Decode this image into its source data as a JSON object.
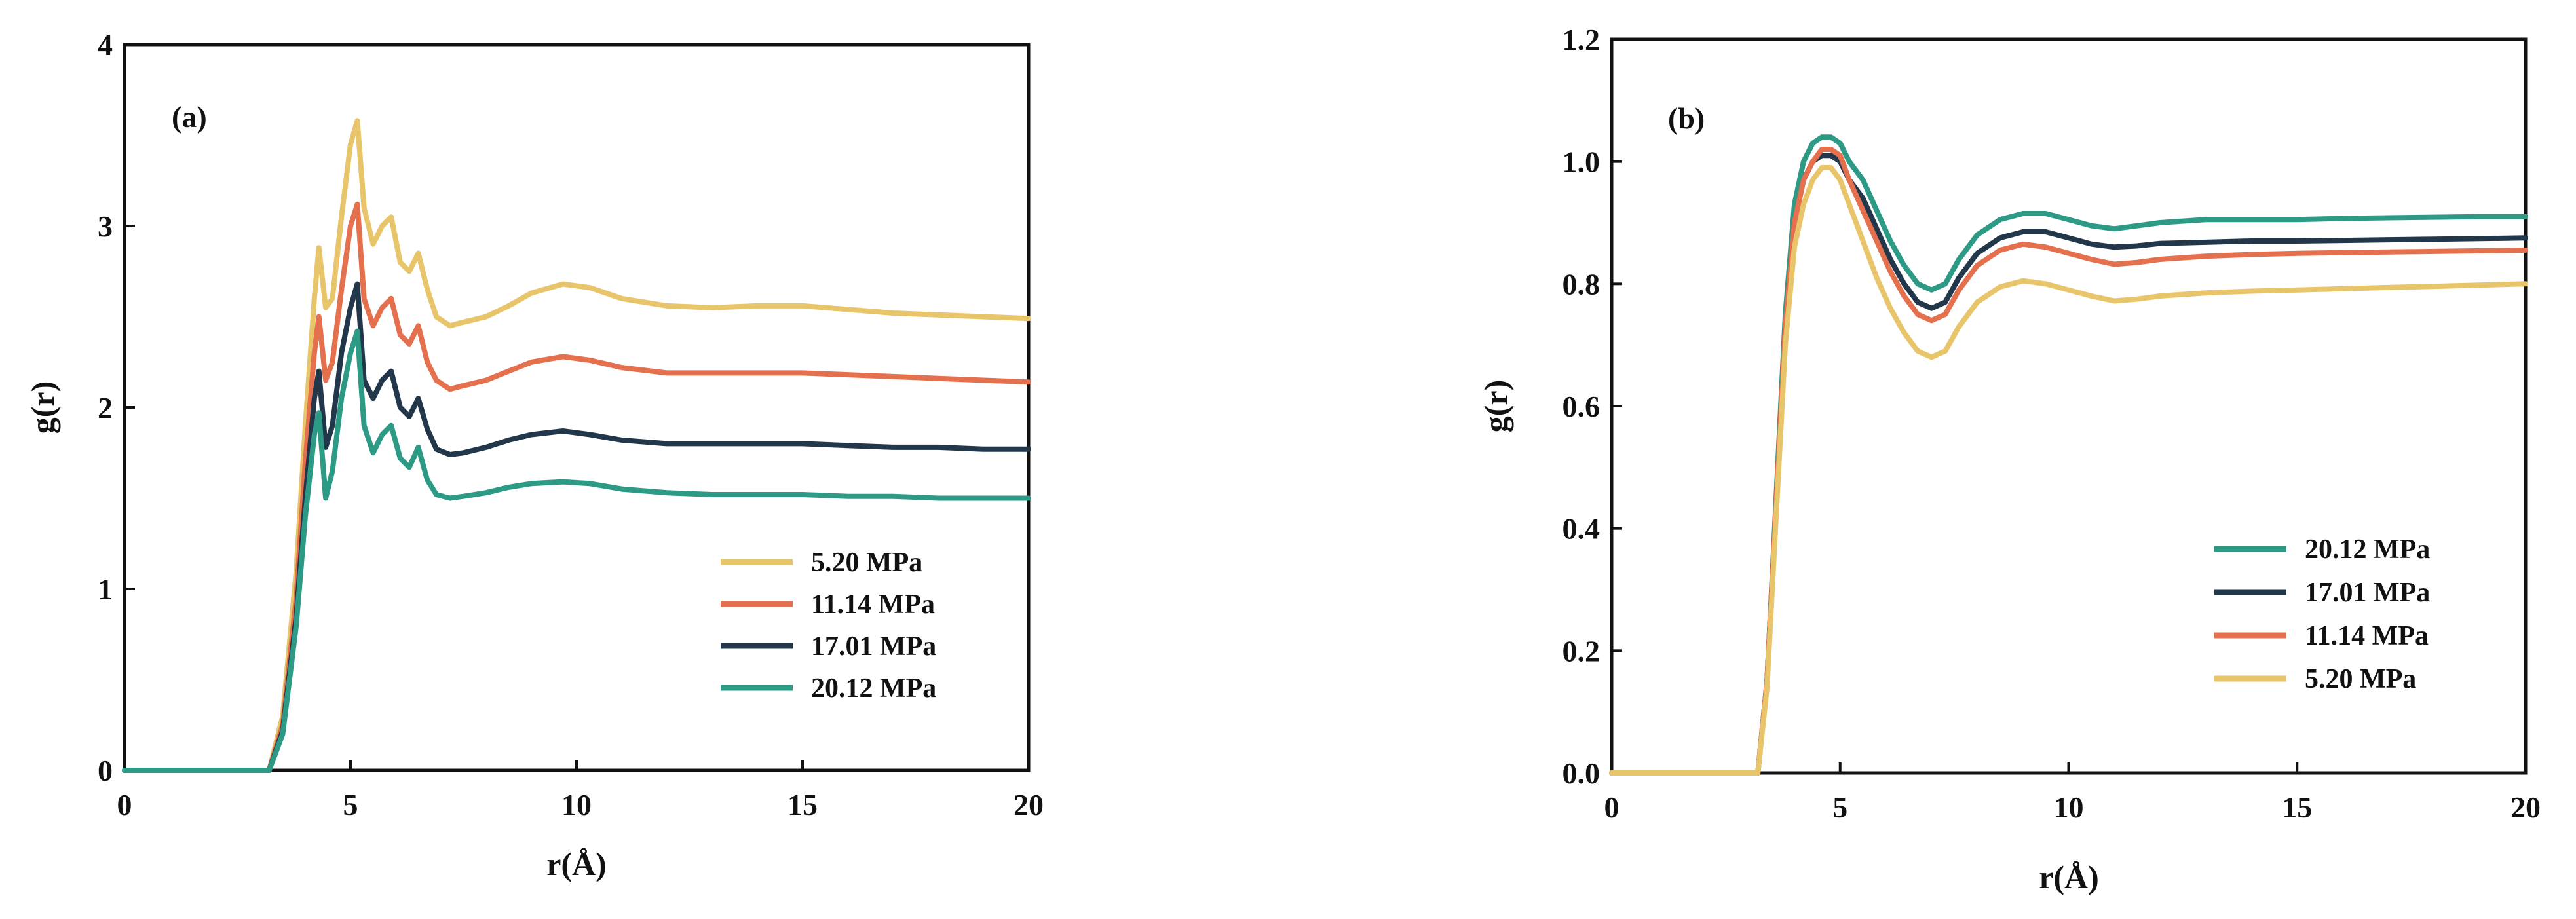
{
  "chart_data": [
    {
      "type": "line",
      "panel_label": "(a)",
      "xlabel": "r(Å)",
      "ylabel": "g(r)",
      "xlim": [
        0,
        20
      ],
      "ylim": [
        0,
        4
      ],
      "xticks": [
        0,
        5,
        10,
        15,
        20
      ],
      "yticks": [
        0,
        1,
        2,
        3,
        4
      ],
      "ytick_labels": [
        "0",
        "1",
        "2",
        "3",
        "4"
      ],
      "legend_position": "bottom-right",
      "series": [
        {
          "name": "5.20 MPa",
          "color": "#e8c46a",
          "x": [
            0,
            3.2,
            3.5,
            3.8,
            4.0,
            4.2,
            4.3,
            4.45,
            4.6,
            4.8,
            5.0,
            5.15,
            5.3,
            5.5,
            5.7,
            5.9,
            6.1,
            6.3,
            6.5,
            6.7,
            6.9,
            7.2,
            7.5,
            8.0,
            8.5,
            9.0,
            9.7,
            10.3,
            11.0,
            12.0,
            13.0,
            14.0,
            15.0,
            16.0,
            17.0,
            18.0,
            19.0,
            20.0
          ],
          "y": [
            0,
            0,
            0.3,
            1.1,
            1.9,
            2.6,
            2.88,
            2.55,
            2.6,
            3.05,
            3.45,
            3.58,
            3.1,
            2.9,
            3.0,
            3.05,
            2.8,
            2.75,
            2.85,
            2.65,
            2.5,
            2.45,
            2.47,
            2.5,
            2.56,
            2.63,
            2.68,
            2.66,
            2.6,
            2.56,
            2.55,
            2.56,
            2.56,
            2.54,
            2.52,
            2.51,
            2.5,
            2.49
          ]
        },
        {
          "name": "11.14 MPa",
          "color": "#e4704e",
          "x": [
            0,
            3.2,
            3.5,
            3.8,
            4.0,
            4.2,
            4.3,
            4.45,
            4.6,
            4.8,
            5.0,
            5.15,
            5.3,
            5.5,
            5.7,
            5.9,
            6.1,
            6.3,
            6.5,
            6.7,
            6.9,
            7.2,
            7.5,
            8.0,
            8.5,
            9.0,
            9.7,
            10.3,
            11.0,
            12.0,
            13.0,
            14.0,
            15.0,
            16.0,
            17.0,
            18.0,
            19.0,
            20.0
          ],
          "y": [
            0,
            0,
            0.25,
            0.95,
            1.7,
            2.3,
            2.5,
            2.15,
            2.25,
            2.65,
            3.0,
            3.12,
            2.6,
            2.45,
            2.55,
            2.6,
            2.4,
            2.35,
            2.45,
            2.25,
            2.15,
            2.1,
            2.12,
            2.15,
            2.2,
            2.25,
            2.28,
            2.26,
            2.22,
            2.19,
            2.19,
            2.19,
            2.19,
            2.18,
            2.17,
            2.16,
            2.15,
            2.14
          ]
        },
        {
          "name": "17.01 MPa",
          "color": "#22384a",
          "x": [
            0,
            3.2,
            3.5,
            3.8,
            4.0,
            4.2,
            4.3,
            4.45,
            4.6,
            4.8,
            5.0,
            5.15,
            5.3,
            5.5,
            5.7,
            5.9,
            6.1,
            6.3,
            6.5,
            6.7,
            6.9,
            7.2,
            7.5,
            8.0,
            8.5,
            9.0,
            9.7,
            10.3,
            11.0,
            12.0,
            13.0,
            14.0,
            15.0,
            16.0,
            17.0,
            18.0,
            19.0,
            20.0
          ],
          "y": [
            0,
            0,
            0.22,
            0.85,
            1.5,
            2.05,
            2.2,
            1.78,
            1.9,
            2.3,
            2.55,
            2.68,
            2.15,
            2.05,
            2.15,
            2.2,
            2.0,
            1.95,
            2.05,
            1.88,
            1.77,
            1.74,
            1.75,
            1.78,
            1.82,
            1.85,
            1.87,
            1.85,
            1.82,
            1.8,
            1.8,
            1.8,
            1.8,
            1.79,
            1.78,
            1.78,
            1.77,
            1.77
          ]
        },
        {
          "name": "20.12 MPa",
          "color": "#2d9a86",
          "x": [
            0,
            3.2,
            3.5,
            3.8,
            4.0,
            4.2,
            4.3,
            4.45,
            4.6,
            4.8,
            5.0,
            5.15,
            5.3,
            5.5,
            5.7,
            5.9,
            6.1,
            6.3,
            6.5,
            6.7,
            6.9,
            7.2,
            7.5,
            8.0,
            8.5,
            9.0,
            9.7,
            10.3,
            11.0,
            12.0,
            13.0,
            14.0,
            15.0,
            16.0,
            17.0,
            18.0,
            19.0,
            20.0
          ],
          "y": [
            0,
            0,
            0.2,
            0.8,
            1.4,
            1.85,
            1.97,
            1.5,
            1.65,
            2.05,
            2.3,
            2.42,
            1.9,
            1.75,
            1.85,
            1.9,
            1.72,
            1.67,
            1.78,
            1.6,
            1.52,
            1.5,
            1.51,
            1.53,
            1.56,
            1.58,
            1.59,
            1.58,
            1.55,
            1.53,
            1.52,
            1.52,
            1.52,
            1.51,
            1.51,
            1.5,
            1.5,
            1.5
          ]
        }
      ]
    },
    {
      "type": "line",
      "panel_label": "(b)",
      "xlabel": "r(Å)",
      "ylabel": "g(r)",
      "xlim": [
        0,
        20
      ],
      "ylim": [
        0,
        1.2
      ],
      "xticks": [
        0,
        5,
        10,
        15,
        20
      ],
      "yticks": [
        0,
        0.2,
        0.4,
        0.6,
        0.8,
        1.0,
        1.2
      ],
      "ytick_labels": [
        "0.0",
        "0.2",
        "0.4",
        "0.6",
        "0.8",
        "1.0",
        "1.2"
      ],
      "legend_position": "bottom-right",
      "series": [
        {
          "name": "20.12 MPa",
          "color": "#2d9a86",
          "x": [
            0,
            3.2,
            3.4,
            3.6,
            3.8,
            4.0,
            4.2,
            4.4,
            4.6,
            4.8,
            5.0,
            5.2,
            5.5,
            5.8,
            6.1,
            6.4,
            6.7,
            7.0,
            7.3,
            7.6,
            8.0,
            8.5,
            9.0,
            9.5,
            10.0,
            10.5,
            11.0,
            11.5,
            12.0,
            13.0,
            14.0,
            15.0,
            16.0,
            17.0,
            18.0,
            19.0,
            20.0
          ],
          "y": [
            0,
            0,
            0.15,
            0.45,
            0.75,
            0.93,
            1.0,
            1.03,
            1.04,
            1.04,
            1.03,
            1.0,
            0.97,
            0.92,
            0.87,
            0.83,
            0.8,
            0.79,
            0.8,
            0.84,
            0.88,
            0.905,
            0.915,
            0.915,
            0.905,
            0.895,
            0.89,
            0.895,
            0.9,
            0.905,
            0.905,
            0.905,
            0.907,
            0.908,
            0.909,
            0.91,
            0.91
          ]
        },
        {
          "name": "17.01 MPa",
          "color": "#22384a",
          "x": [
            0,
            3.2,
            3.4,
            3.6,
            3.8,
            4.0,
            4.2,
            4.4,
            4.6,
            4.8,
            5.0,
            5.2,
            5.5,
            5.8,
            6.1,
            6.4,
            6.7,
            7.0,
            7.3,
            7.6,
            8.0,
            8.5,
            9.0,
            9.5,
            10.0,
            10.5,
            11.0,
            11.5,
            12.0,
            13.0,
            14.0,
            15.0,
            16.0,
            17.0,
            18.0,
            19.0,
            20.0
          ],
          "y": [
            0,
            0,
            0.15,
            0.44,
            0.73,
            0.9,
            0.97,
            1.0,
            1.01,
            1.01,
            1.0,
            0.97,
            0.94,
            0.89,
            0.84,
            0.8,
            0.77,
            0.76,
            0.77,
            0.81,
            0.85,
            0.875,
            0.885,
            0.885,
            0.875,
            0.865,
            0.86,
            0.862,
            0.866,
            0.868,
            0.87,
            0.87,
            0.871,
            0.872,
            0.873,
            0.874,
            0.875
          ]
        },
        {
          "name": "11.14 MPa",
          "color": "#e4704e",
          "x": [
            0,
            3.2,
            3.4,
            3.6,
            3.8,
            4.0,
            4.2,
            4.4,
            4.6,
            4.8,
            5.0,
            5.2,
            5.5,
            5.8,
            6.1,
            6.4,
            6.7,
            7.0,
            7.3,
            7.6,
            8.0,
            8.5,
            9.0,
            9.5,
            10.0,
            10.5,
            11.0,
            11.5,
            12.0,
            13.0,
            14.0,
            15.0,
            16.0,
            17.0,
            18.0,
            19.0,
            20.0
          ],
          "y": [
            0,
            0,
            0.15,
            0.44,
            0.73,
            0.9,
            0.97,
            1.0,
            1.02,
            1.02,
            1.01,
            0.97,
            0.92,
            0.87,
            0.82,
            0.78,
            0.75,
            0.74,
            0.75,
            0.79,
            0.83,
            0.855,
            0.865,
            0.86,
            0.85,
            0.84,
            0.832,
            0.835,
            0.84,
            0.845,
            0.848,
            0.85,
            0.851,
            0.852,
            0.853,
            0.854,
            0.855
          ]
        },
        {
          "name": "5.20 MPa",
          "color": "#e8c46a",
          "x": [
            0,
            3.2,
            3.4,
            3.6,
            3.8,
            4.0,
            4.2,
            4.4,
            4.6,
            4.8,
            5.0,
            5.2,
            5.5,
            5.8,
            6.1,
            6.4,
            6.7,
            7.0,
            7.3,
            7.6,
            8.0,
            8.5,
            9.0,
            9.5,
            10.0,
            10.5,
            11.0,
            11.5,
            12.0,
            13.0,
            14.0,
            15.0,
            16.0,
            17.0,
            18.0,
            19.0,
            20.0
          ],
          "y": [
            0,
            0,
            0.14,
            0.42,
            0.7,
            0.86,
            0.93,
            0.97,
            0.99,
            0.99,
            0.97,
            0.93,
            0.87,
            0.81,
            0.76,
            0.72,
            0.69,
            0.68,
            0.69,
            0.73,
            0.77,
            0.795,
            0.805,
            0.8,
            0.79,
            0.78,
            0.772,
            0.775,
            0.78,
            0.785,
            0.788,
            0.79,
            0.792,
            0.794,
            0.796,
            0.798,
            0.8
          ]
        }
      ]
    }
  ]
}
